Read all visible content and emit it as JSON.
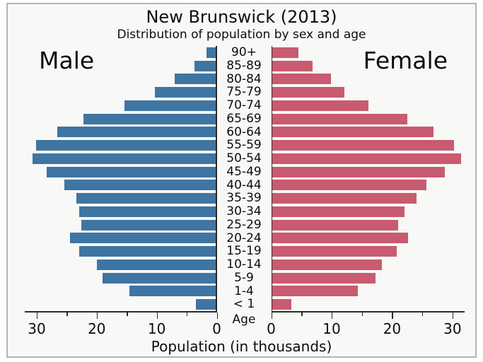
{
  "chart_data": {
    "type": "bar",
    "variant": "population-pyramid",
    "title": "New Brunswick (2013)",
    "subtitle": "Distribution of population by sex and age",
    "xlabel": "Population (in thousands)",
    "age_axis_label": "Age",
    "left_header": "Male",
    "right_header": "Female",
    "categories": [
      "90+",
      "85-89",
      "80-84",
      "75-79",
      "70-74",
      "65-69",
      "60-64",
      "55-59",
      "50-54",
      "45-49",
      "40-44",
      "35-39",
      "30-34",
      "25-29",
      "20-24",
      "15-19",
      "10-14",
      "5-9",
      "1-4",
      "< 1"
    ],
    "series": [
      {
        "name": "Male",
        "side": "left",
        "color": "#3f75a2",
        "values": [
          1.7,
          3.7,
          7.0,
          10.3,
          15.4,
          22.2,
          26.6,
          30.1,
          30.7,
          28.3,
          25.4,
          23.4,
          22.9,
          22.6,
          24.5,
          22.9,
          20.0,
          19.0,
          14.5,
          3.5
        ]
      },
      {
        "name": "Female",
        "side": "right",
        "color": "#c85b70",
        "values": [
          4.5,
          6.8,
          9.9,
          12.1,
          16.1,
          22.5,
          26.9,
          30.2,
          31.4,
          28.7,
          25.7,
          24.1,
          22.1,
          21.0,
          22.6,
          20.8,
          18.3,
          17.3,
          14.3,
          3.3
        ]
      }
    ],
    "x_axis": {
      "max": 32,
      "major_ticks": [
        {
          "value": 0,
          "label": "0"
        },
        {
          "value": 10,
          "label": "10"
        },
        {
          "value": 20,
          "label": "20"
        },
        {
          "value": 30,
          "label": "30"
        }
      ],
      "minor_ticks": [
        5,
        15,
        25
      ],
      "grid": false,
      "note": "mirrored axis: values increase outward from center on both sides"
    },
    "legend_position": "top-inside"
  },
  "colors": {
    "male_bar": "#3f75a2",
    "female_bar": "#c85b70",
    "figure_background": "#f8f8f6",
    "frame_border": "#b4b4b4",
    "axis": "#2a2a2a",
    "text": "#0d0d0d"
  }
}
